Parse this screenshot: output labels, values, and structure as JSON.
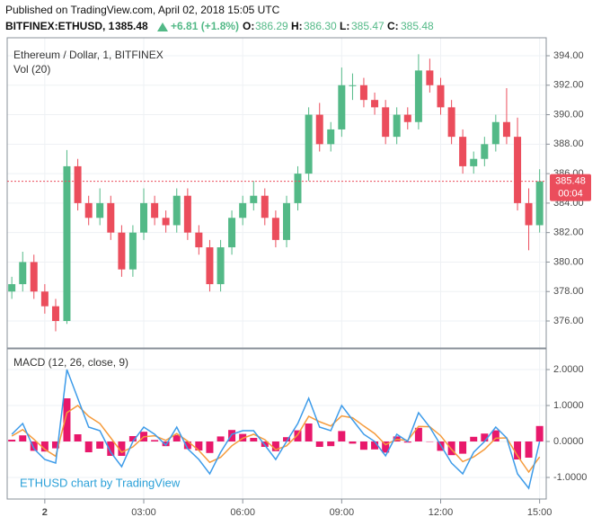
{
  "header": {
    "source": "Published on TradingView.com, April 02, 2018 15:05 UTC",
    "symbol": "BITFINEX:ETHUSD, 1",
    "last": "385.48",
    "change": "+6.81 (+1.8%)",
    "o_label": "O:",
    "open": "386.29",
    "h_label": "H:",
    "high": "386.30",
    "l_label": "L:",
    "low": "385.47",
    "c_label": "C:",
    "close": "385.48"
  },
  "chart_data": [
    {
      "type": "candlestick",
      "title": "Ethereum / Dollar, 1, BITFINEX",
      "subtitle": "Vol (20)",
      "watermark": "ETHUSD chart by TradingView",
      "up_color": "#53b987",
      "down_color": "#eb4d5c",
      "grid": true,
      "x": [
        -1,
        -0.67,
        -0.33,
        0,
        0.33,
        0.67,
        1,
        1.33,
        1.67,
        2,
        2.33,
        2.67,
        3,
        3.33,
        3.67,
        4,
        4.33,
        4.67,
        5,
        5.33,
        5.67,
        6,
        6.33,
        6.67,
        7,
        7.33,
        7.67,
        8,
        8.33,
        8.67,
        9,
        9.33,
        9.67,
        10,
        10.33,
        10.67,
        11,
        11.33,
        11.67,
        12,
        12.33,
        12.67,
        13,
        13.33,
        13.67,
        14,
        14.33,
        14.67,
        15
      ],
      "open": [
        378,
        378.5,
        380,
        378,
        377,
        376,
        386.5,
        384,
        383,
        384,
        382,
        379.5,
        382,
        384,
        383,
        382.5,
        384.5,
        382,
        381,
        378.5,
        381,
        383,
        384,
        384.5,
        383,
        381.5,
        384,
        386,
        390,
        388,
        389,
        392,
        392,
        391,
        390.5,
        388.5,
        390,
        389.5,
        393,
        392,
        390.5,
        388.5,
        386.5,
        387,
        388,
        389.5,
        388.5,
        384,
        382.5
      ],
      "high": [
        379,
        380.7,
        380.5,
        378.5,
        377.5,
        387.6,
        387,
        384.5,
        385,
        384.5,
        382.5,
        382.5,
        385,
        384.5,
        383.5,
        385,
        385,
        382.5,
        381.5,
        381.5,
        383.5,
        384.5,
        385.5,
        385,
        383.5,
        384.5,
        386.5,
        390.5,
        390.8,
        389.5,
        393.2,
        392.8,
        392.5,
        391.5,
        391,
        390.5,
        390.5,
        394.1,
        393.8,
        392.5,
        391,
        389,
        387.5,
        388.5,
        390,
        391.8,
        389.8,
        385,
        386.3
      ],
      "low": [
        377.5,
        378,
        377.5,
        376.5,
        375.3,
        375.8,
        383.5,
        382.5,
        382.5,
        381.5,
        379,
        379,
        381.5,
        382.5,
        382,
        382,
        381.5,
        380.5,
        378,
        378,
        380.5,
        382.5,
        383.5,
        382.5,
        381,
        381,
        383.5,
        385.5,
        387.5,
        387.5,
        388.5,
        391,
        390.5,
        390,
        388,
        388,
        389,
        389,
        391.5,
        390,
        388,
        386,
        386,
        386.5,
        387.5,
        388,
        383.5,
        380.8,
        382
      ],
      "close": [
        378.5,
        380,
        378,
        377,
        376,
        386.5,
        384,
        383,
        384,
        382,
        379.5,
        382,
        384,
        383,
        382.5,
        384.5,
        382,
        381,
        378.5,
        381,
        383,
        384,
        384.5,
        383,
        381.5,
        384,
        386,
        390,
        388,
        389,
        392,
        392,
        391,
        390.5,
        388.5,
        390,
        389.5,
        393,
        392,
        390.5,
        388.5,
        386.5,
        387,
        388,
        389.5,
        388.5,
        384,
        382.5,
        385.48
      ],
      "last_price": {
        "value": 385.48,
        "label": "385.48"
      },
      "countdown": "00:04",
      "xlim": [
        -1.14,
        15.2
      ],
      "xticks": [
        {
          "value": 0,
          "label": "2"
        },
        {
          "value": 3,
          "label": "03:00"
        },
        {
          "value": 6,
          "label": "06:00"
        },
        {
          "value": 9,
          "label": "09:00"
        },
        {
          "value": 12,
          "label": "12:00"
        },
        {
          "value": 15,
          "label": "15:00"
        }
      ],
      "ylim": [
        374.17,
        395.22
      ],
      "yticks": [
        {
          "value": 376,
          "label": "376.00"
        },
        {
          "value": 378,
          "label": "378.00"
        },
        {
          "value": 380,
          "label": "380.00"
        },
        {
          "value": 382,
          "label": "382.00"
        },
        {
          "value": 384,
          "label": "384.00"
        },
        {
          "value": 386,
          "label": "386.00"
        },
        {
          "value": 388,
          "label": "388.00"
        },
        {
          "value": 390,
          "label": "390.00"
        },
        {
          "value": 392,
          "label": "392.00"
        },
        {
          "value": 394,
          "label": "394.00"
        }
      ]
    },
    {
      "type": "macd",
      "title": "MACD (12, 26, close, 9)",
      "grid": true,
      "macd": {
        "color": "#3d9be9",
        "values": [
          0.2,
          0.5,
          -0.2,
          -0.5,
          -0.6,
          2.0,
          1.2,
          0.4,
          0.3,
          -0.3,
          -0.7,
          0.0,
          0.4,
          0.2,
          -0.1,
          0.4,
          -0.2,
          -0.5,
          -0.9,
          -0.3,
          0.2,
          0.3,
          0.3,
          -0.1,
          -0.5,
          0.0,
          0.5,
          1.2,
          0.4,
          0.3,
          1.0,
          0.6,
          0.2,
          0.0,
          -0.4,
          0.2,
          0.0,
          0.8,
          0.4,
          -0.1,
          -0.6,
          -0.9,
          -0.3,
          0.0,
          0.4,
          0.1,
          -0.9,
          -1.3,
          0.0
        ]
      },
      "signal": {
        "color": "#f59b3c",
        "values": [
          0.15,
          0.33,
          0.06,
          -0.22,
          -0.41,
          0.8,
          1.0,
          0.7,
          0.5,
          0.1,
          -0.3,
          -0.15,
          0.13,
          0.16,
          0.03,
          0.22,
          0.01,
          -0.25,
          -0.58,
          -0.44,
          -0.12,
          0.09,
          0.2,
          0.05,
          -0.23,
          -0.12,
          0.19,
          0.7,
          0.55,
          0.43,
          0.71,
          0.66,
          0.43,
          0.22,
          -0.09,
          0.06,
          0.03,
          0.42,
          0.41,
          0.16,
          -0.22,
          -0.56,
          -0.43,
          -0.22,
          0.09,
          0.1,
          -0.4,
          -0.85,
          -0.43
        ]
      },
      "histogram": {
        "color": "#e8186b",
        "values": [
          0.05,
          0.17,
          -0.26,
          -0.28,
          -0.19,
          1.2,
          0.2,
          -0.3,
          -0.2,
          -0.4,
          -0.4,
          0.15,
          0.27,
          0.04,
          -0.13,
          0.18,
          -0.21,
          -0.25,
          -0.32,
          0.14,
          0.32,
          0.21,
          0.1,
          -0.15,
          -0.27,
          0.12,
          0.31,
          0.5,
          -0.15,
          -0.13,
          0.29,
          -0.06,
          -0.23,
          -0.22,
          -0.31,
          0.14,
          -0.03,
          0.38,
          -0.01,
          -0.26,
          -0.38,
          -0.34,
          0.13,
          0.22,
          0.31,
          0,
          -0.5,
          -0.45,
          0.43
        ]
      },
      "ylim": [
        -1.6,
        2.575
      ],
      "yticks": [
        {
          "value": 2,
          "label": "2.0000"
        },
        {
          "value": 1,
          "label": "1.0000"
        },
        {
          "value": 0,
          "label": "0.0000"
        },
        {
          "value": -1,
          "label": "-1.0000"
        }
      ]
    }
  ]
}
